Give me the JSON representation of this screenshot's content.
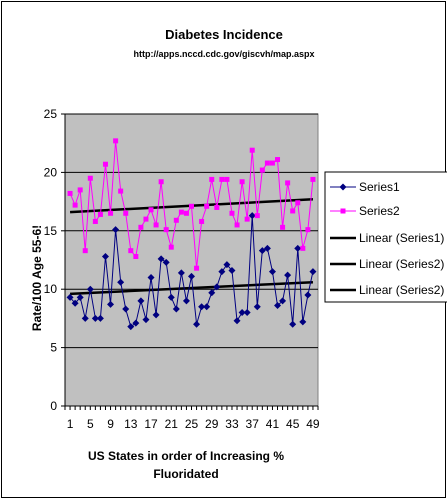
{
  "chart_data": {
    "type": "line",
    "title": "Diabetes Incidence",
    "subtitle": "http://apps.nccd.cdc.gov/giscvh/map.aspx",
    "ylabel": "Rate/100 Age 55-6!",
    "xlabel_lines": [
      "US States in order of Increasing %",
      "Fluoridated"
    ],
    "ylim": [
      0,
      25
    ],
    "yticks": [
      0,
      5,
      10,
      15,
      20,
      25
    ],
    "xlim": [
      0,
      50
    ],
    "xticks": [
      1,
      5,
      9,
      13,
      17,
      21,
      25,
      29,
      33,
      37,
      41,
      45,
      49
    ],
    "grid": "horizontal",
    "legend_position": "right",
    "background_color": "#c0c0c0",
    "series": [
      {
        "name": "Series1",
        "color": "#000080",
        "marker": "diamond",
        "x": [
          1,
          2,
          3,
          4,
          5,
          6,
          7,
          8,
          9,
          10,
          11,
          12,
          13,
          14,
          15,
          16,
          17,
          18,
          19,
          20,
          21,
          22,
          23,
          24,
          25,
          26,
          27,
          28,
          29,
          30,
          31,
          32,
          33,
          34,
          35,
          36,
          37,
          38,
          39,
          40,
          41,
          42,
          43,
          44,
          45,
          46,
          47,
          48,
          49
        ],
        "values": [
          9.3,
          8.8,
          9.3,
          7.5,
          10.0,
          7.5,
          7.5,
          12.8,
          8.7,
          15.1,
          10.6,
          8.3,
          6.8,
          7.1,
          9.0,
          7.4,
          11.0,
          7.8,
          12.6,
          12.3,
          9.3,
          8.3,
          11.4,
          9.0,
          11.1,
          7.0,
          8.5,
          8.5,
          9.7,
          10.2,
          11.5,
          12.1,
          11.6,
          7.3,
          8.0,
          8.0,
          16.3,
          8.5,
          13.3,
          13.5,
          11.5,
          8.6,
          9.0,
          11.2,
          7.0,
          13.5,
          7.2,
          9.5,
          11.5
        ]
      },
      {
        "name": "Series2",
        "color": "#ff00ff",
        "marker": "square",
        "x": [
          1,
          2,
          3,
          4,
          5,
          6,
          7,
          8,
          9,
          10,
          11,
          12,
          13,
          14,
          15,
          16,
          17,
          18,
          19,
          20,
          21,
          22,
          23,
          24,
          25,
          26,
          27,
          28,
          29,
          30,
          31,
          32,
          33,
          34,
          35,
          36,
          37,
          38,
          39,
          40,
          41,
          42,
          43,
          44,
          45,
          46,
          47,
          48,
          49
        ],
        "values": [
          18.2,
          17.2,
          18.5,
          13.3,
          19.5,
          15.8,
          16.4,
          20.7,
          16.5,
          22.7,
          18.4,
          16.5,
          13.3,
          12.8,
          15.3,
          16.0,
          16.8,
          15.5,
          19.2,
          15.1,
          13.6,
          15.9,
          16.6,
          16.5,
          17.1,
          11.8,
          15.8,
          17.1,
          19.4,
          17.0,
          19.4,
          19.4,
          16.5,
          15.5,
          19.2,
          16.0,
          21.9,
          16.3,
          20.2,
          20.8,
          20.8,
          21.1,
          15.3,
          19.1,
          16.7,
          17.4,
          13.5,
          15.1,
          19.4
        ]
      }
    ],
    "trendlines": [
      {
        "name": "Linear (Series1)",
        "color": "#000000",
        "y_start": 9.6,
        "y_end": 10.6
      },
      {
        "name": "Linear (Series2)",
        "color": "#000000",
        "y_start": 16.6,
        "y_end": 17.7
      }
    ],
    "legend": [
      {
        "label": "Series1",
        "kind": "series1"
      },
      {
        "label": "Series2",
        "kind": "series2"
      },
      {
        "label": "Linear (Series1)",
        "kind": "trend"
      },
      {
        "label": "Linear (Series2)",
        "kind": "trend"
      },
      {
        "label": "Linear (Series2)",
        "kind": "trend"
      }
    ]
  }
}
